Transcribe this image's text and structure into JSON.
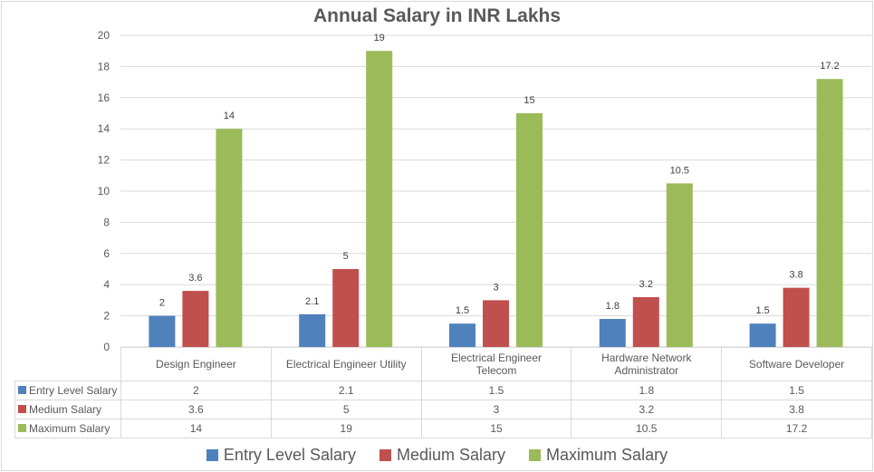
{
  "chart_data": {
    "type": "bar",
    "title": "Annual Salary in INR Lakhs",
    "xlabel": "",
    "ylabel": "",
    "ylim": [
      0,
      20
    ],
    "yticks": [
      0,
      2,
      4,
      6,
      8,
      10,
      12,
      14,
      16,
      18,
      20
    ],
    "grid": true,
    "legend_position": "bottom",
    "categories": [
      "Design Engineer",
      "Electrical Engineer Utility",
      "Electrical Engineer Telecom",
      "Hardware Network Administrator",
      "Software Developer"
    ],
    "category_display": [
      [
        "Design Engineer"
      ],
      [
        "Electrical Engineer Utility"
      ],
      [
        "Electrical Engineer",
        "Telecom"
      ],
      [
        "Hardware Network",
        "Administrator"
      ],
      [
        "Software Developer"
      ]
    ],
    "series": [
      {
        "name": "Entry Level Salary",
        "color": "#4f81bd",
        "values": [
          2,
          2.1,
          1.5,
          1.8,
          1.5
        ],
        "labels": [
          "2",
          "2.1",
          "1.5",
          "1.8",
          "1.5"
        ]
      },
      {
        "name": "Medium Salary",
        "color": "#c0504d",
        "values": [
          3.6,
          5,
          3,
          3.2,
          3.8
        ],
        "labels": [
          "3.6",
          "5",
          "3",
          "3.2",
          "3.8"
        ]
      },
      {
        "name": "Maximum Salary",
        "color": "#9bbb59",
        "values": [
          14,
          19,
          15,
          10.5,
          17.2
        ],
        "labels": [
          "14",
          "19",
          "15",
          "10.5",
          "17.2"
        ]
      }
    ],
    "data_table": true
  }
}
